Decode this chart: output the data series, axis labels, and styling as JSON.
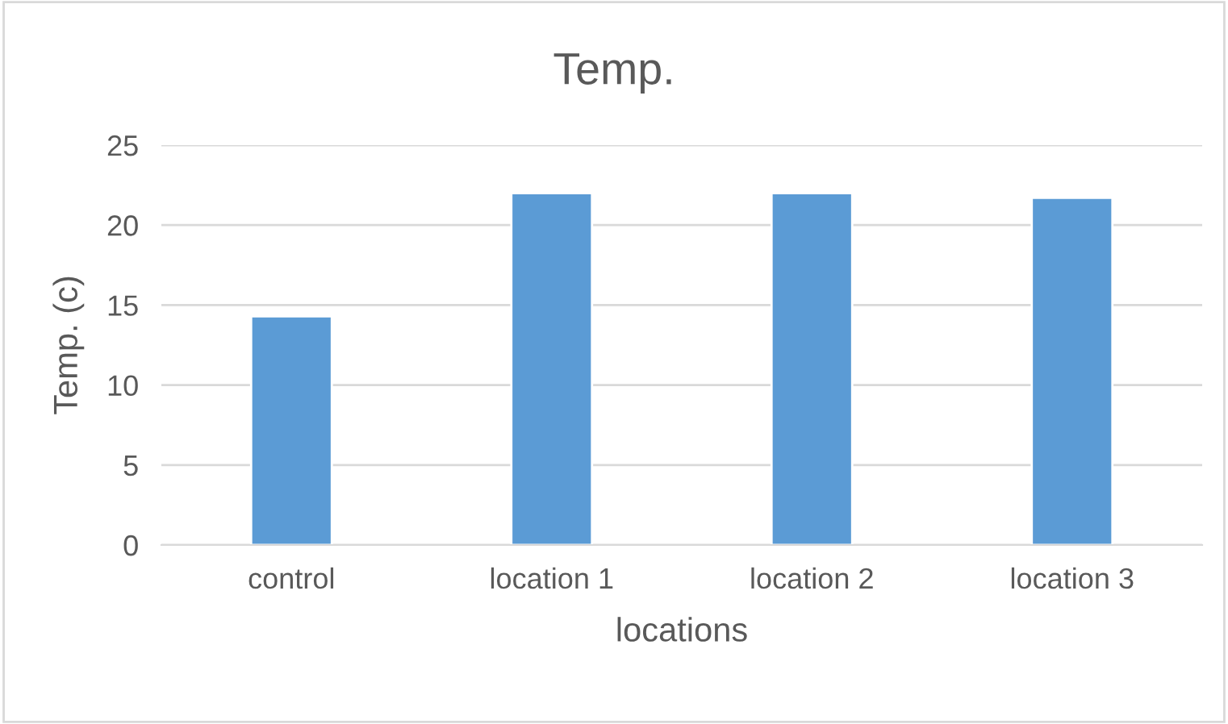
{
  "chart_data": {
    "type": "bar",
    "title": "Temp.",
    "xlabel": "locations",
    "ylabel": "Temp. (c)",
    "categories": [
      "control",
      "location 1",
      "location 2",
      "location 3"
    ],
    "values": [
      14.3,
      22.0,
      22.0,
      21.7
    ],
    "color": "#5b9bd5",
    "ylim": [
      0,
      25
    ],
    "yticks": [
      0,
      5,
      10,
      15,
      20,
      25
    ],
    "grid": "y",
    "legend": false
  }
}
